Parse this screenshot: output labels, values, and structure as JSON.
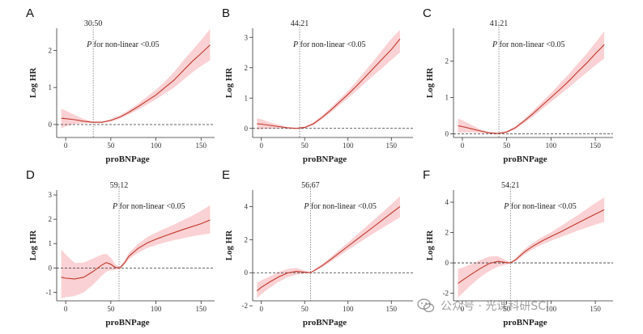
{
  "colors": {
    "curve": "#c0392b",
    "band": "#f6b3b8",
    "axis": "#333333"
  },
  "chart_data": [
    {
      "id": "A",
      "type": "line",
      "xlabel": "proBNPage",
      "ylabel": "Log HR",
      "xlim": [
        -10,
        165
      ],
      "ylim": [
        -0.35,
        2.6
      ],
      "xticks": [
        0,
        50,
        100,
        150
      ],
      "yticks": [
        0,
        1,
        2
      ],
      "knot": 30.5,
      "knot_label": "30.50",
      "annotation_p": "P",
      "annotation_rest": " for non-linear <0.05",
      "x": [
        -5,
        0,
        10,
        20,
        30,
        40,
        50,
        60,
        70,
        80,
        90,
        100,
        110,
        120,
        130,
        140,
        150,
        160
      ],
      "y": [
        0.17,
        0.16,
        0.13,
        0.09,
        0.06,
        0.06,
        0.11,
        0.2,
        0.33,
        0.48,
        0.64,
        0.8,
        1.0,
        1.2,
        1.45,
        1.7,
        1.92,
        2.15
      ],
      "lower": [
        -0.1,
        -0.05,
        0.02,
        0.04,
        0.04,
        0.04,
        0.08,
        0.16,
        0.27,
        0.4,
        0.54,
        0.68,
        0.84,
        1.0,
        1.2,
        1.4,
        1.58,
        1.74
      ],
      "upper": [
        0.42,
        0.38,
        0.26,
        0.15,
        0.08,
        0.08,
        0.15,
        0.25,
        0.39,
        0.56,
        0.75,
        0.94,
        1.16,
        1.42,
        1.72,
        2.0,
        2.28,
        2.58
      ]
    },
    {
      "id": "B",
      "type": "line",
      "xlabel": "proBNPage",
      "ylabel": "Log HR",
      "xlim": [
        -10,
        175
      ],
      "ylim": [
        -0.3,
        3.3
      ],
      "xticks": [
        0,
        50,
        100,
        150
      ],
      "yticks": [
        0,
        1,
        2,
        3
      ],
      "knot": 44.21,
      "knot_label": "44.21",
      "annotation_p": "P",
      "annotation_rest": " for non-linear <0.05",
      "x": [
        -5,
        0,
        10,
        20,
        30,
        40,
        50,
        60,
        70,
        80,
        90,
        100,
        110,
        120,
        130,
        140,
        150,
        160
      ],
      "y": [
        0.15,
        0.14,
        0.1,
        0.06,
        0.02,
        0.0,
        0.03,
        0.15,
        0.36,
        0.6,
        0.86,
        1.12,
        1.4,
        1.7,
        2.0,
        2.3,
        2.6,
        2.95
      ],
      "lower": [
        -0.05,
        -0.02,
        0.0,
        0.0,
        0.0,
        -0.01,
        0.0,
        0.1,
        0.3,
        0.52,
        0.76,
        1.0,
        1.24,
        1.5,
        1.76,
        2.0,
        2.26,
        2.5
      ],
      "upper": [
        0.33,
        0.3,
        0.2,
        0.12,
        0.05,
        0.02,
        0.06,
        0.2,
        0.42,
        0.68,
        0.96,
        1.24,
        1.56,
        1.9,
        2.24,
        2.6,
        2.95,
        3.25
      ]
    },
    {
      "id": "C",
      "type": "line",
      "xlabel": "proBNPage",
      "ylabel": "Log HR",
      "xlim": [
        -10,
        170
      ],
      "ylim": [
        -0.1,
        2.9
      ],
      "xticks": [
        0,
        50,
        100,
        150
      ],
      "yticks": [
        0,
        1,
        2
      ],
      "knot": 41.21,
      "knot_label": "41.21",
      "annotation_p": "P",
      "annotation_rest": " for non-linear <0.05",
      "x": [
        -5,
        0,
        10,
        20,
        30,
        40,
        50,
        60,
        70,
        80,
        90,
        100,
        110,
        120,
        130,
        140,
        150,
        160
      ],
      "y": [
        0.22,
        0.2,
        0.14,
        0.08,
        0.03,
        0.01,
        0.05,
        0.17,
        0.36,
        0.56,
        0.78,
        1.0,
        1.22,
        1.45,
        1.7,
        1.94,
        2.2,
        2.45
      ],
      "lower": [
        0.03,
        0.04,
        0.04,
        0.03,
        0.01,
        0.0,
        0.03,
        0.13,
        0.3,
        0.48,
        0.68,
        0.88,
        1.07,
        1.27,
        1.48,
        1.68,
        1.88,
        2.07
      ],
      "upper": [
        0.42,
        0.37,
        0.25,
        0.13,
        0.05,
        0.03,
        0.08,
        0.21,
        0.42,
        0.64,
        0.88,
        1.12,
        1.38,
        1.64,
        1.92,
        2.2,
        2.5,
        2.82
      ]
    },
    {
      "id": "D",
      "type": "line",
      "xlabel": "proBNPage",
      "ylabel": "Log HR",
      "xlim": [
        -10,
        165
      ],
      "ylim": [
        -1.35,
        3.2
      ],
      "xticks": [
        0,
        50,
        100,
        150
      ],
      "yticks": [
        -1,
        0,
        1,
        2,
        3
      ],
      "knot": 59.12,
      "knot_label": "59.12",
      "annotation_p": "P",
      "annotation_rest": " for non-linear <0.05",
      "x": [
        -5,
        0,
        10,
        20,
        30,
        40,
        45,
        50,
        55,
        60,
        65,
        70,
        80,
        90,
        100,
        110,
        120,
        130,
        140,
        150,
        160
      ],
      "y": [
        -0.38,
        -0.42,
        -0.45,
        -0.38,
        -0.15,
        0.12,
        0.22,
        0.15,
        0.02,
        0.0,
        0.2,
        0.48,
        0.8,
        1.02,
        1.18,
        1.32,
        1.45,
        1.58,
        1.7,
        1.82,
        1.97
      ],
      "lower": [
        -1.25,
        -1.2,
        -1.15,
        -1.0,
        -0.7,
        -0.32,
        -0.15,
        -0.1,
        -0.08,
        -0.04,
        0.12,
        0.36,
        0.62,
        0.82,
        0.94,
        1.05,
        1.14,
        1.22,
        1.3,
        1.36,
        1.42
      ],
      "upper": [
        0.75,
        0.55,
        0.2,
        0.22,
        0.38,
        0.55,
        0.58,
        0.42,
        0.14,
        0.05,
        0.3,
        0.62,
        0.98,
        1.26,
        1.45,
        1.62,
        1.78,
        1.96,
        2.14,
        2.34,
        2.58
      ]
    },
    {
      "id": "E",
      "type": "line",
      "xlabel": "proBNPage",
      "ylabel": "Log HR",
      "xlim": [
        -10,
        175
      ],
      "ylim": [
        -1.7,
        5.0
      ],
      "xticks": [
        0,
        50,
        100,
        150
      ],
      "yticks": [
        -2,
        0,
        2,
        4
      ],
      "knot": 56.67,
      "knot_label": "56.67",
      "annotation_p": "P",
      "annotation_rest": " for non-linear <0.05",
      "x": [
        -5,
        0,
        10,
        20,
        30,
        40,
        50,
        56.67,
        60,
        70,
        80,
        90,
        100,
        110,
        120,
        130,
        140,
        150,
        160
      ],
      "y": [
        -1.1,
        -0.88,
        -0.55,
        -0.25,
        -0.02,
        0.08,
        0.03,
        0.0,
        0.1,
        0.42,
        0.8,
        1.2,
        1.6,
        2.0,
        2.4,
        2.8,
        3.2,
        3.6,
        4.0
      ],
      "lower": [
        -1.55,
        -1.3,
        -0.9,
        -0.55,
        -0.28,
        -0.12,
        -0.05,
        -0.02,
        0.05,
        0.32,
        0.66,
        1.02,
        1.38,
        1.72,
        2.06,
        2.4,
        2.72,
        3.04,
        3.35
      ],
      "upper": [
        -0.6,
        -0.46,
        -0.22,
        0.05,
        0.22,
        0.3,
        0.12,
        0.03,
        0.16,
        0.52,
        0.94,
        1.38,
        1.82,
        2.28,
        2.74,
        3.2,
        3.66,
        4.14,
        4.62
      ]
    },
    {
      "id": "F",
      "type": "line",
      "xlabel": "proBNPage",
      "ylabel": "Log HR",
      "xlim": [
        -10,
        170
      ],
      "ylim": [
        -2.5,
        4.8
      ],
      "xticks": [
        0,
        50,
        100,
        150
      ],
      "yticks": [
        -2,
        0,
        2,
        4
      ],
      "knot": 54.21,
      "knot_label": "54.21",
      "annotation_p": "P",
      "annotation_rest": " for non-linear <0.05",
      "x": [
        -5,
        0,
        10,
        20,
        30,
        40,
        50,
        54.21,
        60,
        70,
        80,
        90,
        100,
        110,
        120,
        130,
        140,
        150,
        160
      ],
      "y": [
        -1.35,
        -1.15,
        -0.75,
        -0.38,
        -0.05,
        0.1,
        0.02,
        0.0,
        0.2,
        0.72,
        1.12,
        1.45,
        1.74,
        2.02,
        2.32,
        2.62,
        2.92,
        3.22,
        3.5
      ],
      "lower": [
        -2.3,
        -2.0,
        -1.45,
        -0.95,
        -0.55,
        -0.25,
        -0.1,
        -0.04,
        0.1,
        0.55,
        0.92,
        1.22,
        1.46,
        1.68,
        1.9,
        2.12,
        2.32,
        2.52,
        2.7
      ],
      "upper": [
        -0.4,
        -0.32,
        -0.08,
        0.18,
        0.42,
        0.45,
        0.14,
        0.04,
        0.32,
        0.9,
        1.34,
        1.7,
        2.02,
        2.38,
        2.76,
        3.14,
        3.54,
        3.94,
        4.32
      ]
    }
  ],
  "watermark": {
    "text": "公众号 · 光课科研SCI",
    "icon": "wechat-icon"
  }
}
